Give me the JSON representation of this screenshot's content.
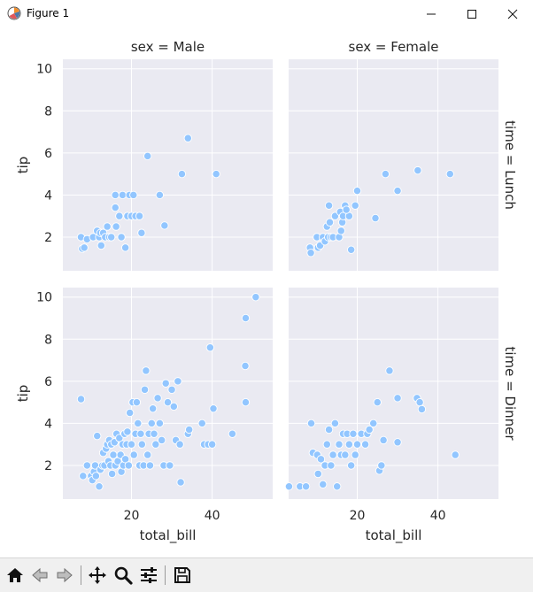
{
  "window": {
    "title": "Figure 1",
    "minimize_label": "–",
    "maximize_label": "☐",
    "close_label": "✕"
  },
  "toolbar": {
    "buttons": [
      "home-icon",
      "back-icon",
      "forward-icon",
      "pan-icon",
      "zoom-icon",
      "configure-subplots-icon",
      "save-icon"
    ]
  },
  "colors": {
    "marker": "#92c6ff",
    "marker_edge": "#ffffff",
    "panel_bg": "#eaeaf2",
    "grid": "#ffffff"
  },
  "chart_data": {
    "type": "scatter",
    "xlabel": "total_bill",
    "ylabel": "tip",
    "xlim": [
      3,
      55
    ],
    "ylim": [
      0.4,
      10.45
    ],
    "xticks": [
      20,
      40
    ],
    "yticks": [
      2,
      4,
      6,
      8,
      10
    ],
    "col_titles": [
      "sex = Male",
      "sex = Female"
    ],
    "row_titles": [
      "time = Lunch",
      "time = Dinner"
    ],
    "panels": [
      {
        "row": 0,
        "col": 0,
        "name": "Male / Lunch",
        "points": [
          [
            7.5,
            2.0
          ],
          [
            7.8,
            1.45
          ],
          [
            8.3,
            1.5
          ],
          [
            9.0,
            1.9
          ],
          [
            10.5,
            2.0
          ],
          [
            11.5,
            2.3
          ],
          [
            12.0,
            2.0
          ],
          [
            12.3,
            2.2
          ],
          [
            12.5,
            1.6
          ],
          [
            13.0,
            2.2
          ],
          [
            13.5,
            2.0
          ],
          [
            14.0,
            2.5
          ],
          [
            14.5,
            2.0
          ],
          [
            15.0,
            2.0
          ],
          [
            16.0,
            4.0
          ],
          [
            16.0,
            3.4
          ],
          [
            16.2,
            2.5
          ],
          [
            17.0,
            3.0
          ],
          [
            17.5,
            2.0
          ],
          [
            17.8,
            4.0
          ],
          [
            18.5,
            1.5
          ],
          [
            19.0,
            3.0
          ],
          [
            19.5,
            4.0
          ],
          [
            20.0,
            3.0
          ],
          [
            20.5,
            4.0
          ],
          [
            21.0,
            3.0
          ],
          [
            22.0,
            3.0
          ],
          [
            22.5,
            2.2
          ],
          [
            24.0,
            5.85
          ],
          [
            27.0,
            4.0
          ],
          [
            28.2,
            2.55
          ],
          [
            32.5,
            5.0
          ],
          [
            34.0,
            6.7
          ],
          [
            41.0,
            5.0
          ]
        ]
      },
      {
        "row": 0,
        "col": 1,
        "name": "Female / Lunch",
        "points": [
          [
            8.3,
            1.5
          ],
          [
            8.5,
            1.25
          ],
          [
            10.0,
            2.0
          ],
          [
            10.3,
            1.5
          ],
          [
            10.8,
            1.6
          ],
          [
            11.5,
            2.0
          ],
          [
            12.0,
            1.8
          ],
          [
            12.5,
            2.5
          ],
          [
            12.8,
            2.0
          ],
          [
            13.0,
            3.5
          ],
          [
            13.2,
            2.7
          ],
          [
            13.5,
            2.0
          ],
          [
            14.0,
            2.0
          ],
          [
            14.5,
            3.0
          ],
          [
            15.5,
            2.0
          ],
          [
            15.8,
            3.2
          ],
          [
            16.0,
            2.3
          ],
          [
            16.3,
            2.7
          ],
          [
            16.5,
            3.0
          ],
          [
            17.0,
            3.5
          ],
          [
            18.0,
            3.0
          ],
          [
            17.3,
            3.3
          ],
          [
            18.5,
            1.4
          ],
          [
            19.5,
            3.5
          ],
          [
            20.0,
            4.2
          ],
          [
            24.5,
            2.9
          ],
          [
            27.0,
            5.0
          ],
          [
            30.0,
            4.2
          ],
          [
            35.0,
            5.17
          ],
          [
            43.0,
            5.0
          ]
        ]
      },
      {
        "row": 1,
        "col": 0,
        "name": "Male / Dinner",
        "points": [
          [
            7.5,
            5.15
          ],
          [
            8.0,
            1.5
          ],
          [
            9.0,
            2.0
          ],
          [
            10.0,
            1.5
          ],
          [
            10.3,
            1.3
          ],
          [
            10.7,
            1.7
          ],
          [
            11.0,
            2.0
          ],
          [
            11.2,
            1.5
          ],
          [
            11.5,
            3.4
          ],
          [
            12.0,
            1.0
          ],
          [
            12.3,
            1.8
          ],
          [
            12.8,
            2.0
          ],
          [
            13.0,
            2.6
          ],
          [
            13.3,
            2.0
          ],
          [
            13.7,
            2.8
          ],
          [
            14.0,
            3.0
          ],
          [
            14.3,
            2.2
          ],
          [
            14.5,
            3.2
          ],
          [
            14.8,
            2.0
          ],
          [
            15.0,
            3.0
          ],
          [
            15.2,
            1.6
          ],
          [
            15.5,
            2.5
          ],
          [
            15.8,
            3.1
          ],
          [
            16.0,
            2.0
          ],
          [
            16.3,
            3.5
          ],
          [
            16.6,
            2.2
          ],
          [
            17.0,
            3.3
          ],
          [
            17.3,
            2.5
          ],
          [
            17.5,
            1.7
          ],
          [
            17.8,
            3.0
          ],
          [
            18.0,
            2.0
          ],
          [
            18.3,
            3.5
          ],
          [
            18.5,
            2.3
          ],
          [
            18.8,
            3.0
          ],
          [
            19.0,
            3.6
          ],
          [
            19.3,
            2.0
          ],
          [
            19.6,
            4.5
          ],
          [
            20.0,
            3.0
          ],
          [
            20.3,
            5.0
          ],
          [
            20.6,
            2.5
          ],
          [
            21.0,
            3.5
          ],
          [
            21.3,
            5.0
          ],
          [
            21.6,
            4.0
          ],
          [
            22.0,
            2.0
          ],
          [
            22.3,
            3.5
          ],
          [
            22.6,
            3.0
          ],
          [
            23.0,
            2.0
          ],
          [
            23.3,
            5.6
          ],
          [
            23.6,
            6.5
          ],
          [
            24.0,
            2.5
          ],
          [
            24.3,
            3.5
          ],
          [
            24.6,
            2.0
          ],
          [
            25.0,
            4.0
          ],
          [
            25.3,
            4.7
          ],
          [
            25.6,
            3.5
          ],
          [
            26.0,
            3.0
          ],
          [
            26.5,
            5.2
          ],
          [
            27.0,
            4.0
          ],
          [
            27.5,
            3.2
          ],
          [
            28.0,
            2.0
          ],
          [
            28.5,
            5.9
          ],
          [
            29.0,
            5.0
          ],
          [
            29.5,
            2.0
          ],
          [
            30.0,
            5.6
          ],
          [
            30.5,
            4.8
          ],
          [
            31.0,
            3.2
          ],
          [
            31.5,
            6.0
          ],
          [
            32.0,
            3.0
          ],
          [
            32.2,
            1.2
          ],
          [
            34.0,
            3.5
          ],
          [
            34.3,
            3.7
          ],
          [
            37.5,
            4.0
          ],
          [
            38.0,
            3.0
          ],
          [
            39.0,
            3.0
          ],
          [
            39.5,
            7.6
          ],
          [
            40.0,
            3.0
          ],
          [
            40.3,
            4.7
          ],
          [
            45.0,
            3.5
          ],
          [
            48.2,
            6.73
          ],
          [
            48.3,
            9.0
          ],
          [
            48.3,
            5.0
          ],
          [
            50.8,
            10.0
          ]
        ]
      },
      {
        "row": 1,
        "col": 1,
        "name": "Female / Dinner",
        "points": [
          [
            3.1,
            1.0
          ],
          [
            5.8,
            1.0
          ],
          [
            7.3,
            1.0
          ],
          [
            8.6,
            4.0
          ],
          [
            9.0,
            2.6
          ],
          [
            10.1,
            2.5
          ],
          [
            10.3,
            1.6
          ],
          [
            11.0,
            2.3
          ],
          [
            11.5,
            1.1
          ],
          [
            12.0,
            2.0
          ],
          [
            12.5,
            3.0
          ],
          [
            13.0,
            3.7
          ],
          [
            13.5,
            2.0
          ],
          [
            14.0,
            2.5
          ],
          [
            14.5,
            4.0
          ],
          [
            15.0,
            1.0
          ],
          [
            15.5,
            3.0
          ],
          [
            16.0,
            2.5
          ],
          [
            16.5,
            3.5
          ],
          [
            17.0,
            2.5
          ],
          [
            17.5,
            3.5
          ],
          [
            18.0,
            3.0
          ],
          [
            18.5,
            2.0
          ],
          [
            19.0,
            3.5
          ],
          [
            19.5,
            2.5
          ],
          [
            20.0,
            3.0
          ],
          [
            21.0,
            3.5
          ],
          [
            22.0,
            3.0
          ],
          [
            22.5,
            3.5
          ],
          [
            23.0,
            3.7
          ],
          [
            24.0,
            4.0
          ],
          [
            25.0,
            5.0
          ],
          [
            25.5,
            1.75
          ],
          [
            26.0,
            2.0
          ],
          [
            26.5,
            3.2
          ],
          [
            28.0,
            6.5
          ],
          [
            30.0,
            3.1
          ],
          [
            30.0,
            5.2
          ],
          [
            34.8,
            5.2
          ],
          [
            35.5,
            5.0
          ],
          [
            36.0,
            4.67
          ],
          [
            44.3,
            2.5
          ]
        ]
      }
    ]
  }
}
